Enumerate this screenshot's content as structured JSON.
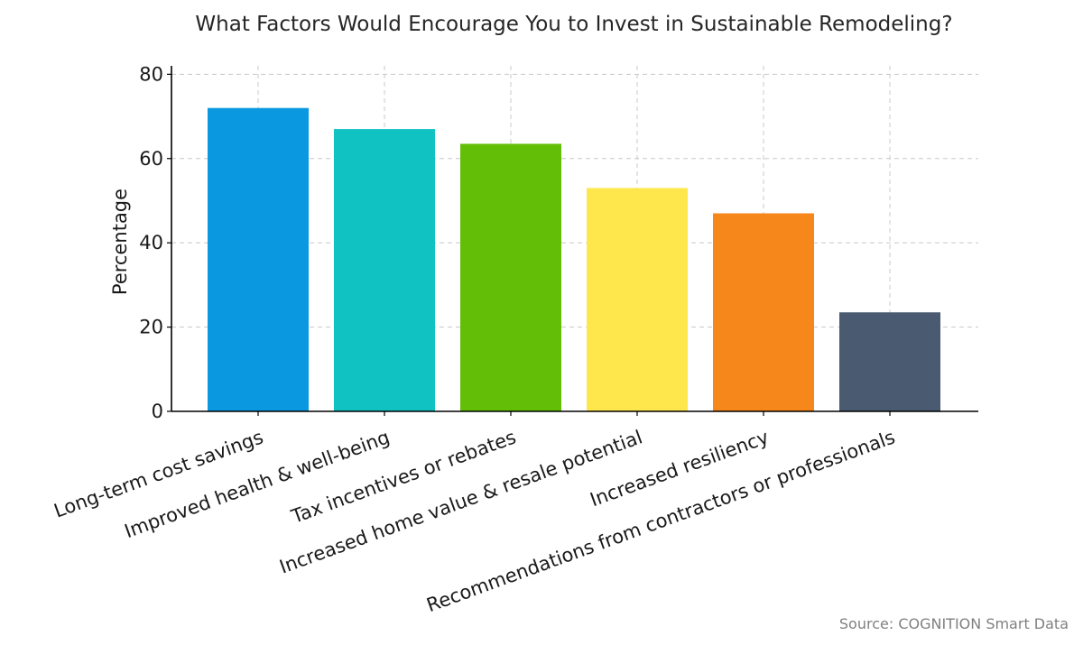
{
  "chart_data": {
    "type": "bar",
    "title": "What Factors Would Encourage You to Invest in Sustainable Remodeling?",
    "xlabel": "",
    "ylabel": "Percentage",
    "categories": [
      "Long-term cost savings",
      "Improved health & well-being",
      "Tax incentives or rebates",
      "Increased home value & resale potential",
      "Increased resiliency",
      "Recommendations from contractors or professionals"
    ],
    "values": [
      72,
      67,
      63.5,
      53,
      47,
      23.5
    ],
    "colors": [
      "#0a99e0",
      "#11c2c2",
      "#63be08",
      "#fde74c",
      "#f6871a",
      "#4a5a70"
    ],
    "ylim": [
      0,
      82
    ],
    "yticks": [
      0,
      20,
      40,
      60,
      80
    ],
    "grid": true,
    "legend": "none",
    "source": "Source: COGNITION Smart Data"
  }
}
